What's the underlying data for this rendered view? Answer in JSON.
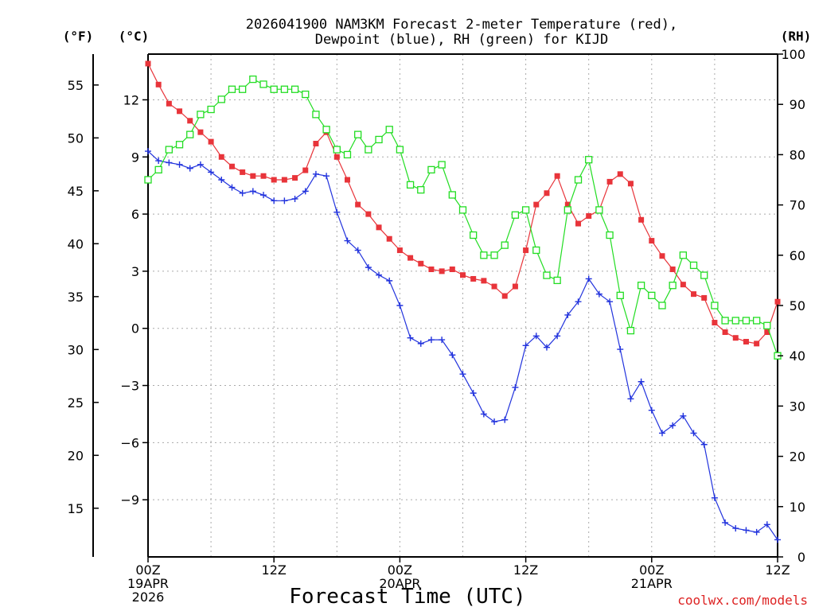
{
  "chart_data": {
    "type": "line",
    "title_lines": [
      "2026041900 NAM3KM Forecast 2-meter Temperature (red),",
      "Dewpoint (blue), RH (green) for KIJD"
    ],
    "unit_labels": {
      "fahrenheit": "(°F)",
      "celsius": "(°C)",
      "rh": "(RH)"
    },
    "xlabel": "Forecast Time (UTC)",
    "credit": "coolwx.com/models",
    "x_range_hours": [
      0,
      60
    ],
    "x_ticks": [
      {
        "hour": 0,
        "lines": [
          "00Z",
          "19APR",
          "2026"
        ]
      },
      {
        "hour": 12,
        "lines": [
          "12Z"
        ]
      },
      {
        "hour": 24,
        "lines": [
          "00Z",
          "20APR"
        ]
      },
      {
        "hour": 36,
        "lines": [
          "12Z"
        ]
      },
      {
        "hour": 48,
        "lines": [
          "00Z",
          "21APR"
        ]
      },
      {
        "hour": 60,
        "lines": [
          "12Z"
        ]
      }
    ],
    "celsius_range": [
      -12,
      14.4
    ],
    "celsius_ticks": [
      "12",
      "9",
      "6",
      "3",
      "0",
      "−3",
      "−6",
      "−9"
    ],
    "fahrenheit_ticks": [
      "55",
      "50",
      "45",
      "40",
      "35",
      "30",
      "25",
      "20",
      "15"
    ],
    "rh_range": [
      0,
      100
    ],
    "rh_ticks": [
      "100",
      "90",
      "80",
      "70",
      "60",
      "50",
      "40",
      "30",
      "20",
      "10",
      "0"
    ],
    "series": [
      {
        "name": "Temperature",
        "unit": "C",
        "color": "#e8343a",
        "marker": "filled-square",
        "values": [
          13.9,
          12.8,
          11.8,
          11.4,
          10.9,
          10.3,
          9.8,
          9.0,
          8.5,
          8.2,
          8.0,
          8.0,
          7.8,
          7.8,
          7.9,
          8.3,
          9.7,
          10.3,
          9.0,
          7.8,
          6.5,
          6.0,
          5.3,
          4.7,
          4.1,
          3.7,
          3.4,
          3.1,
          3.0,
          3.1,
          2.8,
          2.6,
          2.5,
          2.2,
          1.7,
          2.2,
          4.1,
          6.5,
          7.1,
          8.0,
          6.5,
          5.5,
          5.9,
          6.2,
          7.7,
          8.1,
          7.6,
          5.7,
          4.6,
          3.8,
          3.1,
          2.3,
          1.8,
          1.6,
          0.3,
          -0.2,
          -0.5,
          -0.7,
          -0.8,
          -0.2,
          1.4
        ]
      },
      {
        "name": "Dewpoint",
        "unit": "C",
        "color": "#2233dd",
        "marker": "plus",
        "values": [
          9.3,
          8.8,
          8.7,
          8.6,
          8.4,
          8.6,
          8.2,
          7.8,
          7.4,
          7.1,
          7.2,
          7.0,
          6.7,
          6.7,
          6.8,
          7.2,
          8.1,
          8.0,
          6.1,
          4.6,
          4.1,
          3.2,
          2.8,
          2.5,
          1.2,
          -0.5,
          -0.8,
          -0.6,
          -0.6,
          -1.4,
          -2.4,
          -3.4,
          -4.5,
          -4.9,
          -4.8,
          -3.1,
          -0.9,
          -0.4,
          -1.0,
          -0.4,
          0.7,
          1.4,
          2.6,
          1.8,
          1.4,
          -1.1,
          -3.7,
          -2.8,
          -4.3,
          -5.5,
          -5.1,
          -4.6,
          -5.5,
          -6.1,
          -8.9,
          -10.2,
          -10.5,
          -10.6,
          -10.7,
          -10.3,
          -11.1
        ]
      },
      {
        "name": "RH",
        "unit": "%",
        "color": "#22dd22",
        "marker": "open-square",
        "values": [
          75,
          77,
          81,
          82,
          84,
          88,
          89,
          91,
          93,
          93,
          95,
          94,
          93,
          93,
          93,
          92,
          88,
          85,
          81,
          80,
          84,
          81,
          83,
          85,
          81,
          74,
          73,
          77,
          78,
          72,
          69,
          64,
          60,
          60,
          62,
          68,
          69,
          61,
          56,
          55,
          69,
          75,
          79,
          69,
          64,
          52,
          45,
          54,
          52,
          50,
          54,
          60,
          58,
          56,
          50,
          47,
          47,
          47,
          47,
          46,
          40
        ]
      }
    ]
  }
}
